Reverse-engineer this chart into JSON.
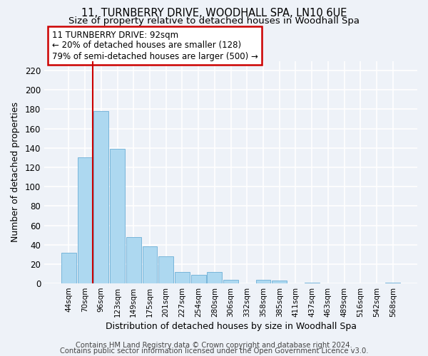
{
  "title": "11, TURNBERRY DRIVE, WOODHALL SPA, LN10 6UE",
  "subtitle": "Size of property relative to detached houses in Woodhall Spa",
  "xlabel": "Distribution of detached houses by size in Woodhall Spa",
  "ylabel": "Number of detached properties",
  "bar_color": "#add8f0",
  "bar_edge_color": "#6aaed6",
  "categories": [
    "44sqm",
    "70sqm",
    "96sqm",
    "123sqm",
    "149sqm",
    "175sqm",
    "201sqm",
    "227sqm",
    "254sqm",
    "280sqm",
    "306sqm",
    "332sqm",
    "358sqm",
    "385sqm",
    "411sqm",
    "437sqm",
    "463sqm",
    "489sqm",
    "516sqm",
    "542sqm",
    "568sqm"
  ],
  "values": [
    32,
    130,
    178,
    139,
    48,
    38,
    28,
    12,
    9,
    12,
    4,
    0,
    4,
    3,
    0,
    1,
    0,
    0,
    0,
    0,
    1
  ],
  "vline_x": 1.5,
  "vline_color": "#cc0000",
  "annotation_title": "11 TURNBERRY DRIVE: 92sqm",
  "annotation_line1": "← 20% of detached houses are smaller (128)",
  "annotation_line2": "79% of semi-detached houses are larger (500) →",
  "annotation_box_color": "white",
  "annotation_box_edge": "#cc0000",
  "footer1": "Contains HM Land Registry data © Crown copyright and database right 2024.",
  "footer2": "Contains public sector information licensed under the Open Government Licence v3.0.",
  "ylim": [
    0,
    230
  ],
  "background_color": "#eef2f8",
  "grid_color": "white",
  "title_fontsize": 10.5,
  "subtitle_fontsize": 9.5,
  "footer_fontsize": 7.2
}
